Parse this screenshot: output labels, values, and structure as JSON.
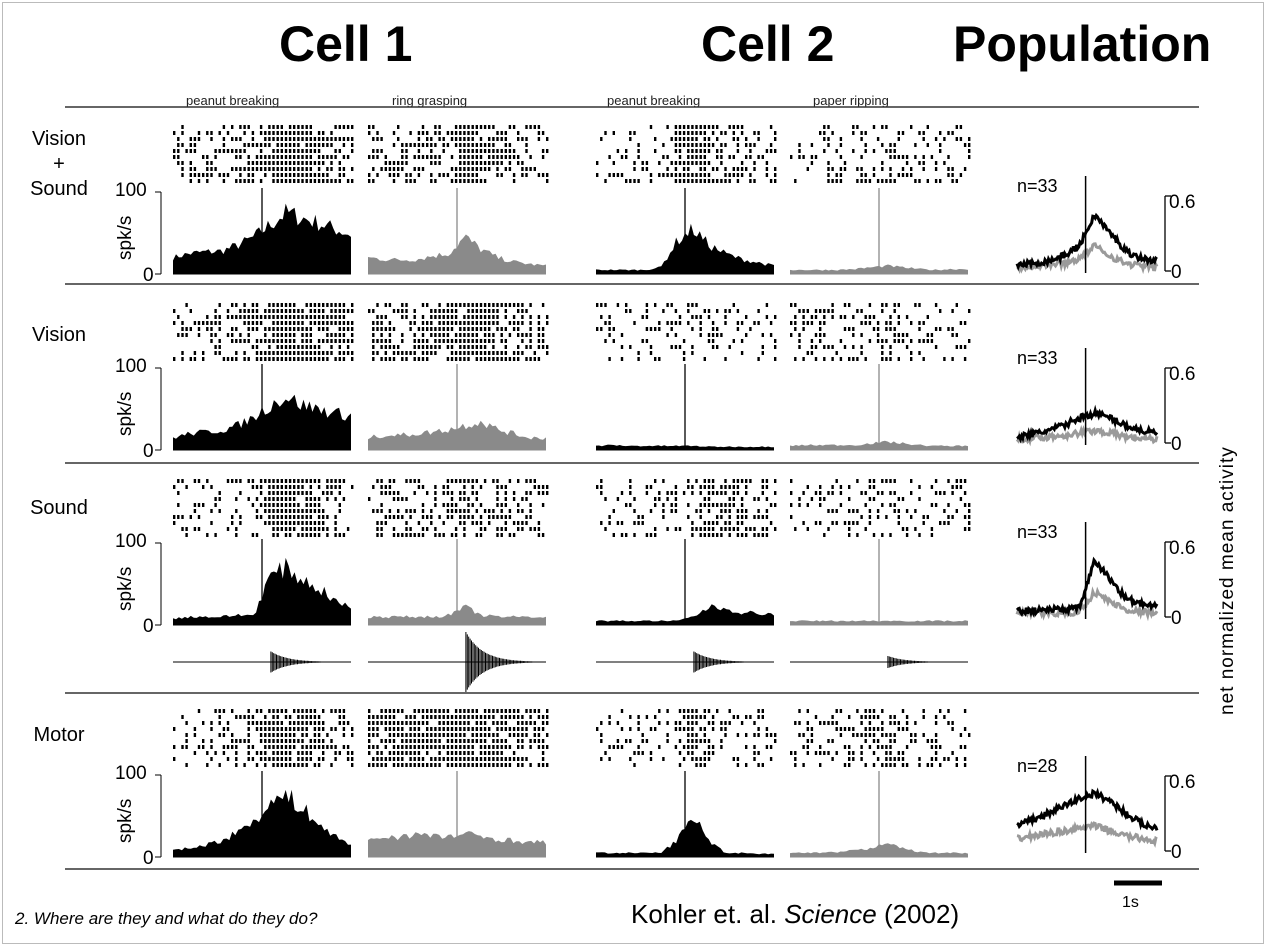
{
  "headers": {
    "cell1": "Cell 1",
    "cell2": "Cell 2",
    "population": "Population"
  },
  "conditions": {
    "cell1_a": "peanut breaking",
    "cell1_b": "ring grasping",
    "cell2_a": "peanut breaking",
    "cell2_b": "paper ripping"
  },
  "rows": [
    {
      "label_lines": [
        "Vision",
        "+",
        "Sound"
      ],
      "n": "n=33"
    },
    {
      "label_lines": [
        "Vision"
      ],
      "n": "n=33"
    },
    {
      "label_lines": [
        "Sound"
      ],
      "n": "n=33"
    },
    {
      "label_lines": [
        "Motor"
      ],
      "n": "n=28"
    }
  ],
  "axis": {
    "ymax": "100",
    "ymin": "0",
    "ylabel": "spk/s",
    "pop_max": "0.6",
    "pop_min": "0",
    "pop_ylabel": "net normalized mean activity"
  },
  "scale_bar": "1s",
  "citation": {
    "authors": "Kohler et. al.",
    "journal": "Science",
    "year": "(2002)"
  },
  "footer": "2. Where are they and what do they do?",
  "colors": {
    "cell1_a": "#000000",
    "cell1_b": "#8a8a8a",
    "cell2_a": "#000000",
    "cell2_b": "#8a8a8a",
    "pop_dark": "#000000",
    "pop_light": "#9a9a9a"
  },
  "chart_data": {
    "type": "area",
    "title": "",
    "ylabel": "spk/s",
    "ylim": [
      0,
      100
    ],
    "series": [
      {
        "panel": "Vision + Sound",
        "condition": "peanut breaking",
        "cell": 1,
        "values": [
          20,
          25,
          27,
          28,
          35,
          45,
          60,
          75,
          68,
          62,
          55,
          48
        ]
      },
      {
        "panel": "Vision + Sound",
        "condition": "ring grasping",
        "cell": 1,
        "values": [
          20,
          18,
          17,
          18,
          22,
          25,
          45,
          30,
          20,
          15,
          12,
          10
        ]
      },
      {
        "panel": "Vision + Sound",
        "condition": "peanut breaking",
        "cell": 2,
        "values": [
          5,
          5,
          5,
          5,
          8,
          40,
          55,
          35,
          25,
          18,
          14,
          10
        ]
      },
      {
        "panel": "Vision + Sound",
        "condition": "paper ripping",
        "cell": 2,
        "values": [
          5,
          5,
          5,
          5,
          6,
          8,
          10,
          8,
          6,
          5,
          6,
          6
        ]
      },
      {
        "panel": "Vision",
        "condition": "peanut breaking",
        "cell": 1,
        "values": [
          15,
          20,
          22,
          24,
          30,
          40,
          55,
          65,
          55,
          50,
          45,
          42
        ]
      },
      {
        "panel": "Vision",
        "condition": "ring grasping",
        "cell": 1,
        "values": [
          15,
          18,
          18,
          20,
          22,
          25,
          30,
          35,
          25,
          20,
          15,
          15
        ]
      },
      {
        "panel": "Vision",
        "condition": "peanut breaking",
        "cell": 2,
        "values": [
          5,
          6,
          5,
          5,
          5,
          5,
          5,
          4,
          4,
          4,
          4,
          4
        ]
      },
      {
        "panel": "Vision",
        "condition": "paper ripping",
        "cell": 2,
        "values": [
          5,
          6,
          6,
          6,
          6,
          8,
          10,
          8,
          6,
          5,
          5,
          5
        ]
      },
      {
        "panel": "Sound",
        "condition": "peanut breaking",
        "cell": 1,
        "values": [
          8,
          10,
          10,
          10,
          12,
          12,
          60,
          70,
          55,
          45,
          30,
          20
        ]
      },
      {
        "panel": "Sound",
        "condition": "ring grasping",
        "cell": 1,
        "values": [
          10,
          10,
          10,
          10,
          10,
          12,
          22,
          12,
          10,
          10,
          10,
          10
        ]
      },
      {
        "panel": "Sound",
        "condition": "peanut breaking",
        "cell": 2,
        "values": [
          5,
          5,
          5,
          5,
          5,
          5,
          10,
          22,
          20,
          15,
          15,
          12
        ]
      },
      {
        "panel": "Sound",
        "condition": "paper ripping",
        "cell": 2,
        "values": [
          5,
          5,
          5,
          5,
          5,
          5,
          5,
          5,
          5,
          5,
          5,
          5
        ]
      },
      {
        "panel": "Motor",
        "condition": "peanut breaking",
        "cell": 1,
        "values": [
          10,
          10,
          15,
          20,
          30,
          45,
          65,
          75,
          60,
          40,
          25,
          15
        ]
      },
      {
        "panel": "Motor",
        "condition": "ring grasping",
        "cell": 1,
        "values": [
          20,
          25,
          25,
          28,
          25,
          25,
          28,
          25,
          22,
          20,
          18,
          18
        ]
      },
      {
        "panel": "Motor",
        "condition": "peanut breaking",
        "cell": 2,
        "values": [
          5,
          5,
          5,
          5,
          5,
          20,
          50,
          20,
          5,
          5,
          4,
          4
        ]
      },
      {
        "panel": "Motor",
        "condition": "paper ripping",
        "cell": 2,
        "values": [
          5,
          5,
          5,
          6,
          8,
          10,
          20,
          10,
          6,
          5,
          5,
          5
        ]
      }
    ],
    "population": {
      "ylabel": "net normalized mean activity",
      "ylim": [
        0,
        0.6
      ],
      "series": [
        {
          "panel": "Vision + Sound",
          "n": 33,
          "dark": [
            0.05,
            0.06,
            0.08,
            0.12,
            0.2,
            0.45,
            0.3,
            0.16,
            0.1,
            0.08
          ],
          "light": [
            0.03,
            0.04,
            0.05,
            0.06,
            0.1,
            0.2,
            0.12,
            0.06,
            0.04,
            0.03
          ]
        },
        {
          "panel": "Vision",
          "n": 33,
          "dark": [
            0.05,
            0.07,
            0.1,
            0.14,
            0.2,
            0.24,
            0.2,
            0.14,
            0.1,
            0.08
          ],
          "light": [
            0.03,
            0.04,
            0.05,
            0.06,
            0.08,
            0.1,
            0.08,
            0.05,
            0.04,
            0.03
          ]
        },
        {
          "panel": "Sound",
          "n": 33,
          "dark": [
            0.05,
            0.05,
            0.06,
            0.06,
            0.07,
            0.45,
            0.3,
            0.15,
            0.1,
            0.08
          ],
          "light": [
            0.03,
            0.03,
            0.03,
            0.03,
            0.04,
            0.2,
            0.12,
            0.06,
            0.04,
            0.03
          ]
        },
        {
          "panel": "Motor",
          "n": 28,
          "dark": [
            0.2,
            0.25,
            0.3,
            0.36,
            0.42,
            0.46,
            0.4,
            0.3,
            0.22,
            0.18
          ],
          "light": [
            0.1,
            0.12,
            0.14,
            0.16,
            0.18,
            0.2,
            0.16,
            0.12,
            0.1,
            0.08
          ]
        }
      ]
    }
  }
}
